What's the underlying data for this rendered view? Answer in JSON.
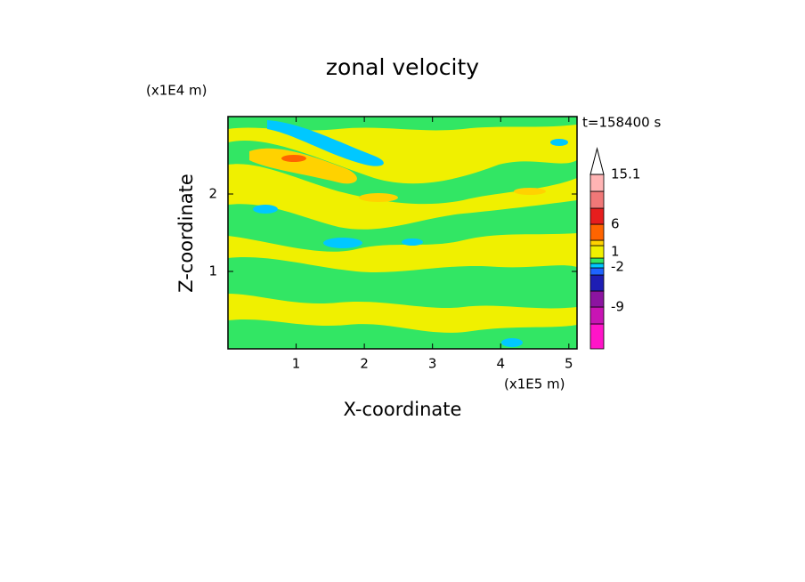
{
  "chart_data": {
    "type": "contourf",
    "title": "zonal velocity",
    "x_label": "X-coordinate",
    "y_label": "Z-coordinate",
    "x_unit": "(x1E5 m)",
    "y_unit": "(x1E4 m)",
    "time_label": "t=158400 s",
    "xlim": [
      0,
      5.12
    ],
    "xticks": [
      1,
      2,
      3,
      4,
      5
    ],
    "ylim": [
      0,
      3
    ],
    "yticks": [
      1,
      2
    ],
    "colorbar": {
      "ticks": [
        15.1,
        6,
        1,
        -2,
        -9
      ],
      "colors": [
        "#ff14c8",
        "#c814b4",
        "#8c14a0",
        "#1e1eb4",
        "#1e64ff",
        "#00c8ff",
        "#32e664",
        "#f0f000",
        "#ffd200",
        "#ff6400",
        "#e61e1e",
        "#f07878",
        "#ffb4b4"
      ]
    }
  }
}
